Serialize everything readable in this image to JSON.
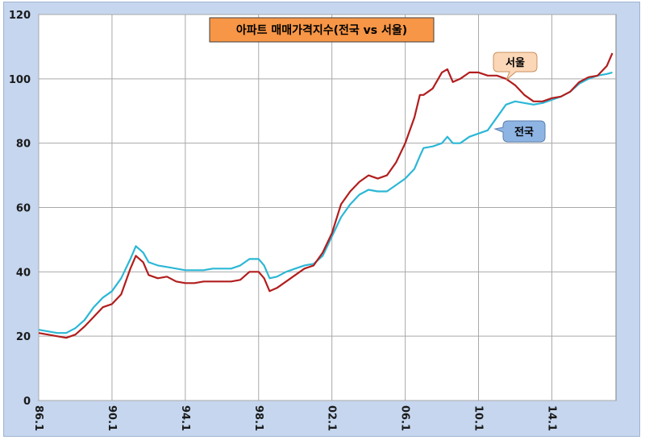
{
  "colors": {
    "frame": "#c5d6ee",
    "plot": "#ffffff",
    "grid": "#a9a9a9",
    "seoul": "#b21d1d",
    "national": "#2cb7d6",
    "title_bg": "#f79646",
    "seoul_callout_bg": "#fbd7b7",
    "national_callout_bg": "#8eb4e3"
  },
  "chart_data": {
    "type": "line",
    "title": "아파트 매매가격지수(전국 vs 서울)",
    "xlabel": "",
    "ylabel": "",
    "ylim": [
      0,
      120
    ],
    "yticks": [
      0,
      20,
      40,
      60,
      80,
      100,
      120
    ],
    "xlim": [
      1986.0,
      2017.5
    ],
    "xtick_values": [
      1986,
      1990,
      1994,
      1998,
      2002,
      2006,
      2010,
      2014
    ],
    "xtick_labels": [
      "86.1",
      "90.1",
      "94.1",
      "98.1",
      "02.1",
      "06.1",
      "10.1",
      "14.1"
    ],
    "grid": true,
    "legend": "callouts",
    "series": [
      {
        "name": "서울",
        "color": "#b21d1d",
        "x": [
          1986.0,
          1986.5,
          1987.0,
          1987.5,
          1988.0,
          1988.5,
          1989.0,
          1989.5,
          1990.0,
          1990.5,
          1991.0,
          1991.3,
          1991.7,
          1992.0,
          1992.5,
          1993.0,
          1993.5,
          1994.0,
          1994.5,
          1995.0,
          1995.5,
          1996.0,
          1996.5,
          1997.0,
          1997.5,
          1998.0,
          1998.3,
          1998.6,
          1999.0,
          1999.5,
          2000.0,
          2000.5,
          2001.0,
          2001.5,
          2002.0,
          2002.5,
          2003.0,
          2003.5,
          2004.0,
          2004.5,
          2005.0,
          2005.5,
          2006.0,
          2006.5,
          2006.8,
          2007.0,
          2007.5,
          2008.0,
          2008.3,
          2008.6,
          2009.0,
          2009.5,
          2010.0,
          2010.5,
          2011.0,
          2011.5,
          2012.0,
          2012.5,
          2013.0,
          2013.5,
          2014.0,
          2014.5,
          2015.0,
          2015.5,
          2016.0,
          2016.5,
          2017.0,
          2017.3
        ],
        "values": [
          21,
          20.5,
          20,
          19.5,
          20.5,
          23,
          26,
          29,
          30,
          33,
          41,
          45,
          43,
          39,
          38,
          38.5,
          37,
          36.5,
          36.5,
          37,
          37,
          37,
          37,
          37.5,
          40,
          40,
          38,
          34,
          35,
          37,
          39,
          41,
          42,
          46,
          52,
          61,
          65,
          68,
          70,
          69,
          70,
          74,
          80,
          88,
          95,
          95,
          97,
          102,
          103,
          99,
          100,
          102,
          102,
          101,
          101,
          100,
          98,
          95,
          93,
          93,
          94,
          94.5,
          96,
          99,
          100.5,
          101,
          104,
          108
        ]
      },
      {
        "name": "전국",
        "color": "#2cb7d6",
        "x": [
          1986.0,
          1986.5,
          1987.0,
          1987.5,
          1988.0,
          1988.5,
          1989.0,
          1989.5,
          1990.0,
          1990.5,
          1991.0,
          1991.3,
          1991.7,
          1992.0,
          1992.5,
          1993.0,
          1993.5,
          1994.0,
          1994.5,
          1995.0,
          1995.5,
          1996.0,
          1996.5,
          1997.0,
          1997.5,
          1998.0,
          1998.3,
          1998.6,
          1999.0,
          1999.5,
          2000.0,
          2000.5,
          2001.0,
          2001.5,
          2002.0,
          2002.5,
          2003.0,
          2003.5,
          2004.0,
          2004.5,
          2005.0,
          2005.5,
          2006.0,
          2006.5,
          2006.8,
          2007.0,
          2007.5,
          2008.0,
          2008.3,
          2008.6,
          2009.0,
          2009.5,
          2010.0,
          2010.5,
          2011.0,
          2011.5,
          2012.0,
          2012.5,
          2013.0,
          2013.5,
          2014.0,
          2014.5,
          2015.0,
          2015.5,
          2016.0,
          2016.5,
          2017.0,
          2017.3
        ],
        "values": [
          22,
          21.5,
          21,
          21,
          22.5,
          25,
          29,
          32,
          34,
          38,
          44,
          48,
          46,
          43,
          42,
          41.5,
          41,
          40.5,
          40.5,
          40.5,
          41,
          41,
          41,
          42,
          44,
          44,
          42,
          38,
          38.5,
          40,
          41,
          42,
          42.5,
          45,
          51,
          57,
          61,
          64,
          65.5,
          65,
          65,
          67,
          69,
          72,
          76,
          78.5,
          79,
          80,
          82,
          80,
          80,
          82,
          83,
          84,
          88,
          92,
          93,
          92.5,
          92,
          92.5,
          93.5,
          94.5,
          96,
          98.5,
          100,
          101,
          101.5,
          102
        ]
      }
    ],
    "callouts": [
      {
        "label": "서울",
        "series": 0
      },
      {
        "label": "전국",
        "series": 1
      }
    ]
  }
}
